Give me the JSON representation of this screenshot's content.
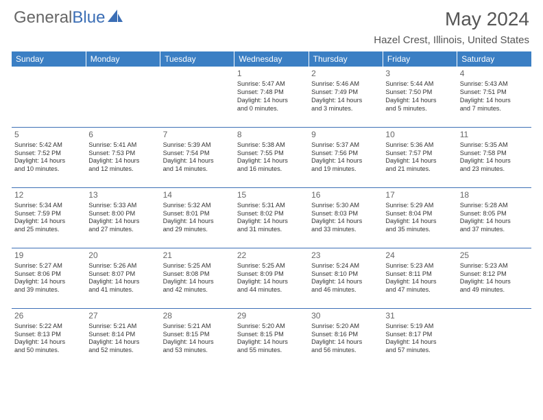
{
  "logo": {
    "part1": "General",
    "part2": "Blue"
  },
  "title": "May 2024",
  "location": "Hazel Crest, Illinois, United States",
  "colors": {
    "header_bg": "#3b7fc4",
    "header_text": "#ffffff",
    "accent": "#3b6eb5",
    "text": "#333333",
    "muted": "#666666",
    "background": "#ffffff"
  },
  "day_headers": [
    "Sunday",
    "Monday",
    "Tuesday",
    "Wednesday",
    "Thursday",
    "Friday",
    "Saturday"
  ],
  "weeks": [
    [
      null,
      null,
      null,
      {
        "n": "1",
        "sr": "5:47 AM",
        "ss": "7:48 PM",
        "dl1": "Daylight: 14 hours",
        "dl2": "and 0 minutes."
      },
      {
        "n": "2",
        "sr": "5:46 AM",
        "ss": "7:49 PM",
        "dl1": "Daylight: 14 hours",
        "dl2": "and 3 minutes."
      },
      {
        "n": "3",
        "sr": "5:44 AM",
        "ss": "7:50 PM",
        "dl1": "Daylight: 14 hours",
        "dl2": "and 5 minutes."
      },
      {
        "n": "4",
        "sr": "5:43 AM",
        "ss": "7:51 PM",
        "dl1": "Daylight: 14 hours",
        "dl2": "and 7 minutes."
      }
    ],
    [
      {
        "n": "5",
        "sr": "5:42 AM",
        "ss": "7:52 PM",
        "dl1": "Daylight: 14 hours",
        "dl2": "and 10 minutes."
      },
      {
        "n": "6",
        "sr": "5:41 AM",
        "ss": "7:53 PM",
        "dl1": "Daylight: 14 hours",
        "dl2": "and 12 minutes."
      },
      {
        "n": "7",
        "sr": "5:39 AM",
        "ss": "7:54 PM",
        "dl1": "Daylight: 14 hours",
        "dl2": "and 14 minutes."
      },
      {
        "n": "8",
        "sr": "5:38 AM",
        "ss": "7:55 PM",
        "dl1": "Daylight: 14 hours",
        "dl2": "and 16 minutes."
      },
      {
        "n": "9",
        "sr": "5:37 AM",
        "ss": "7:56 PM",
        "dl1": "Daylight: 14 hours",
        "dl2": "and 19 minutes."
      },
      {
        "n": "10",
        "sr": "5:36 AM",
        "ss": "7:57 PM",
        "dl1": "Daylight: 14 hours",
        "dl2": "and 21 minutes."
      },
      {
        "n": "11",
        "sr": "5:35 AM",
        "ss": "7:58 PM",
        "dl1": "Daylight: 14 hours",
        "dl2": "and 23 minutes."
      }
    ],
    [
      {
        "n": "12",
        "sr": "5:34 AM",
        "ss": "7:59 PM",
        "dl1": "Daylight: 14 hours",
        "dl2": "and 25 minutes."
      },
      {
        "n": "13",
        "sr": "5:33 AM",
        "ss": "8:00 PM",
        "dl1": "Daylight: 14 hours",
        "dl2": "and 27 minutes."
      },
      {
        "n": "14",
        "sr": "5:32 AM",
        "ss": "8:01 PM",
        "dl1": "Daylight: 14 hours",
        "dl2": "and 29 minutes."
      },
      {
        "n": "15",
        "sr": "5:31 AM",
        "ss": "8:02 PM",
        "dl1": "Daylight: 14 hours",
        "dl2": "and 31 minutes."
      },
      {
        "n": "16",
        "sr": "5:30 AM",
        "ss": "8:03 PM",
        "dl1": "Daylight: 14 hours",
        "dl2": "and 33 minutes."
      },
      {
        "n": "17",
        "sr": "5:29 AM",
        "ss": "8:04 PM",
        "dl1": "Daylight: 14 hours",
        "dl2": "and 35 minutes."
      },
      {
        "n": "18",
        "sr": "5:28 AM",
        "ss": "8:05 PM",
        "dl1": "Daylight: 14 hours",
        "dl2": "and 37 minutes."
      }
    ],
    [
      {
        "n": "19",
        "sr": "5:27 AM",
        "ss": "8:06 PM",
        "dl1": "Daylight: 14 hours",
        "dl2": "and 39 minutes."
      },
      {
        "n": "20",
        "sr": "5:26 AM",
        "ss": "8:07 PM",
        "dl1": "Daylight: 14 hours",
        "dl2": "and 41 minutes."
      },
      {
        "n": "21",
        "sr": "5:25 AM",
        "ss": "8:08 PM",
        "dl1": "Daylight: 14 hours",
        "dl2": "and 42 minutes."
      },
      {
        "n": "22",
        "sr": "5:25 AM",
        "ss": "8:09 PM",
        "dl1": "Daylight: 14 hours",
        "dl2": "and 44 minutes."
      },
      {
        "n": "23",
        "sr": "5:24 AM",
        "ss": "8:10 PM",
        "dl1": "Daylight: 14 hours",
        "dl2": "and 46 minutes."
      },
      {
        "n": "24",
        "sr": "5:23 AM",
        "ss": "8:11 PM",
        "dl1": "Daylight: 14 hours",
        "dl2": "and 47 minutes."
      },
      {
        "n": "25",
        "sr": "5:23 AM",
        "ss": "8:12 PM",
        "dl1": "Daylight: 14 hours",
        "dl2": "and 49 minutes."
      }
    ],
    [
      {
        "n": "26",
        "sr": "5:22 AM",
        "ss": "8:13 PM",
        "dl1": "Daylight: 14 hours",
        "dl2": "and 50 minutes."
      },
      {
        "n": "27",
        "sr": "5:21 AM",
        "ss": "8:14 PM",
        "dl1": "Daylight: 14 hours",
        "dl2": "and 52 minutes."
      },
      {
        "n": "28",
        "sr": "5:21 AM",
        "ss": "8:15 PM",
        "dl1": "Daylight: 14 hours",
        "dl2": "and 53 minutes."
      },
      {
        "n": "29",
        "sr": "5:20 AM",
        "ss": "8:15 PM",
        "dl1": "Daylight: 14 hours",
        "dl2": "and 55 minutes."
      },
      {
        "n": "30",
        "sr": "5:20 AM",
        "ss": "8:16 PM",
        "dl1": "Daylight: 14 hours",
        "dl2": "and 56 minutes."
      },
      {
        "n": "31",
        "sr": "5:19 AM",
        "ss": "8:17 PM",
        "dl1": "Daylight: 14 hours",
        "dl2": "and 57 minutes."
      },
      null
    ]
  ],
  "labels": {
    "sunrise_prefix": "Sunrise: ",
    "sunset_prefix": "Sunset: "
  }
}
